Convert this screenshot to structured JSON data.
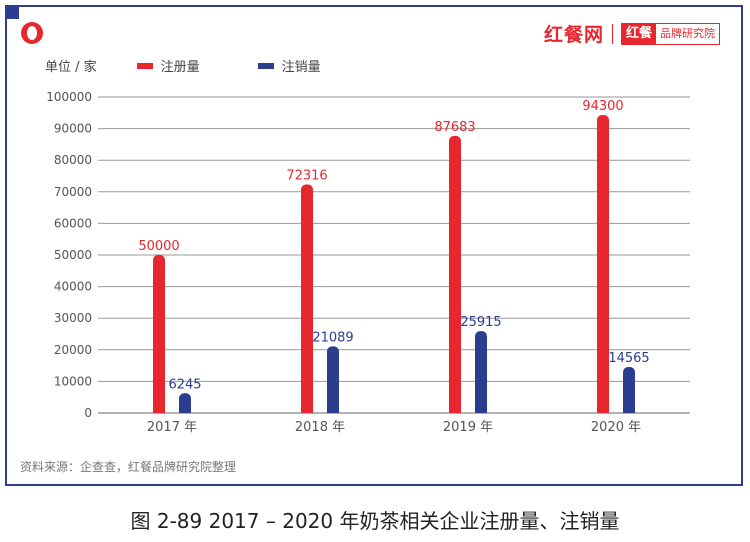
{
  "header": {
    "brand_name": "红餐网",
    "brand_badge_red": "红餐",
    "brand_badge_text": "品牌研究院"
  },
  "legend": {
    "unit": "单位 / 家"
  },
  "source": "资料来源：企查查，红餐品牌研究院整理",
  "caption": "图 2-89     2017 – 2020 年奶茶相关企业注册量、注销量",
  "chart_data": {
    "type": "bar",
    "title": "",
    "xlabel": "",
    "ylabel": "单位 / 家",
    "categories": [
      "2017 年",
      "2018 年",
      "2019 年",
      "2020 年"
    ],
    "ylim": [
      0,
      100000
    ],
    "yticks": [
      0,
      10000,
      20000,
      30000,
      40000,
      50000,
      60000,
      70000,
      80000,
      90000,
      100000
    ],
    "grid": true,
    "legend_position": "top-left",
    "series": [
      {
        "name": "注册量",
        "values": [
          50000,
          72316,
          87683,
          94300
        ],
        "color": "#e8262e"
      },
      {
        "name": "注销量",
        "values": [
          6245,
          21089,
          25915,
          14565
        ],
        "color": "#2b3d8f"
      }
    ]
  }
}
